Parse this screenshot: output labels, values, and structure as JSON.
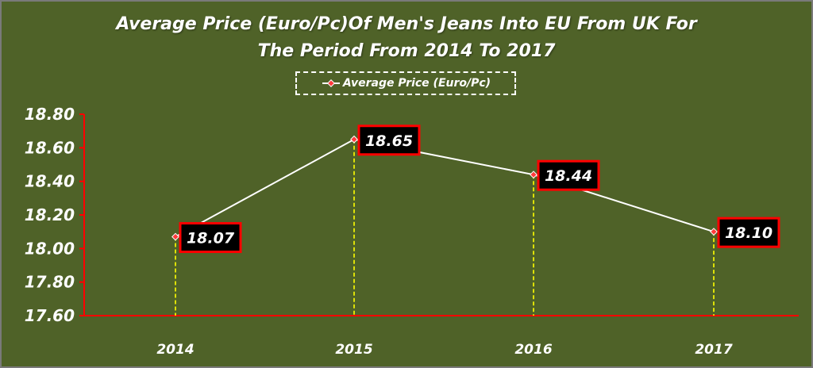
{
  "chart_data": {
    "type": "line",
    "title": "Average Price (Euro/Pc)Of Men's Jeans Into EU From UK For The Period From 2014 To 2017",
    "categories": [
      "2014",
      "2015",
      "2016",
      "2017"
    ],
    "series": [
      {
        "name": "Average Price (Euro/Pc)",
        "values": [
          18.07,
          18.65,
          18.44,
          18.1
        ],
        "labels": [
          "18.07",
          "18.65",
          "18.44",
          "18.10"
        ]
      }
    ],
    "ylim": [
      17.6,
      18.8
    ],
    "yticks": [
      "17.60",
      "17.80",
      "18.00",
      "18.20",
      "18.40",
      "18.60",
      "18.80"
    ],
    "xlabel": "",
    "ylabel": "",
    "legend_position": "top",
    "grid": false,
    "colors": {
      "background": "#4f6228",
      "line": "#ffffff",
      "marker": "#ff3b3b",
      "drop_lines": "#ffff00",
      "axis": "#ff0000",
      "label_box_fill": "#000000",
      "label_box_border": "#ff0000"
    }
  }
}
